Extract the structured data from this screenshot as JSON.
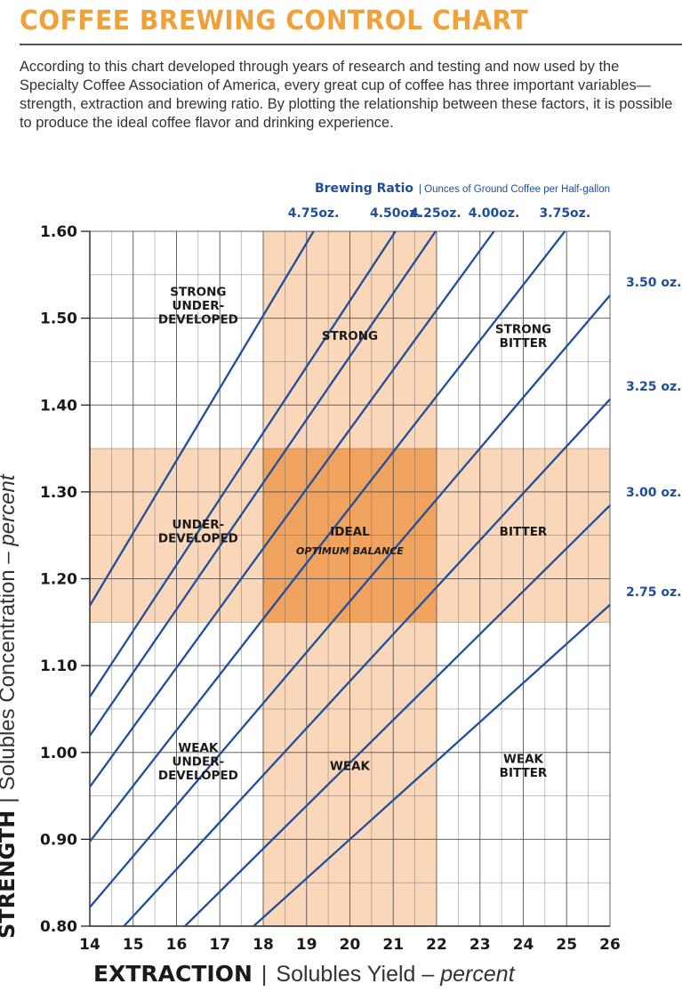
{
  "title": "COFFEE BREWING CONTROL CHART",
  "intro": "According to this chart developed through years of research and testing and now used by the Specialty Coffee Association of America, every great cup of coffee has three important variables—strength, extraction and brewing ratio. By plotting the relationship between these factors, it is possible to produce the ideal coffee flavor and drinking experience.",
  "colors": {
    "title": "#f0a13a",
    "line": "#1f4e9c",
    "zone_light": "#f9d7b8",
    "zone_dark": "#f0a35f",
    "grid": "#555555"
  },
  "chart_data": {
    "type": "line",
    "title": "Coffee Brewing Control Chart",
    "ratio_title": "Brewing Ratio",
    "ratio_subtitle": "| Ounces of Ground Coffee per Half-gallon",
    "xlabel": "EXTRACTION",
    "xlabel_rest": "Solubles Yield – ",
    "xlabel_italic": "percent",
    "ylabel": "STRENGTH",
    "ylabel_rest": "Solubles Concentration – ",
    "ylabel_italic": "percent",
    "xlim": [
      14,
      26
    ],
    "ylim": [
      0.8,
      1.6
    ],
    "x_ticks": [
      "14",
      "15",
      "16",
      "17",
      "18",
      "19",
      "20",
      "21",
      "22",
      "23",
      "24",
      "25",
      "26"
    ],
    "y_ticks": [
      "0.80",
      "0.90",
      "1.00",
      "1.10",
      "1.20",
      "1.30",
      "1.40",
      "1.50",
      "1.60"
    ],
    "ideal_extraction": [
      18,
      22
    ],
    "ideal_strength": [
      1.15,
      1.35
    ],
    "series": [
      {
        "name": "4.75oz.",
        "strength_per_extraction_percent": 0.0835
      },
      {
        "name": "4.50oz.",
        "strength_per_extraction_percent": 0.076
      },
      {
        "name": "4.25oz.",
        "strength_per_extraction_percent": 0.0728
      },
      {
        "name": "4.00oz.",
        "strength_per_extraction_percent": 0.0686
      },
      {
        "name": "3.75oz.",
        "strength_per_extraction_percent": 0.0641
      },
      {
        "name": "3.50 oz.",
        "strength_per_extraction_percent": 0.0587
      },
      {
        "name": "3.25 oz.",
        "strength_per_extraction_percent": 0.0541
      },
      {
        "name": "3.00 oz.",
        "strength_per_extraction_percent": 0.0494
      },
      {
        "name": "2.75 oz.",
        "strength_per_extraction_percent": 0.045
      }
    ],
    "zones": [
      {
        "lines": [
          "STRONG",
          "UNDER-",
          "DEVELOPED"
        ],
        "x": 16.5,
        "y": 1.515
      },
      {
        "lines": [
          "STRONG"
        ],
        "x": 20.0,
        "y": 1.48
      },
      {
        "lines": [
          "STRONG",
          "BITTER"
        ],
        "x": 24.0,
        "y": 1.48
      },
      {
        "lines": [
          "UNDER-",
          "DEVELOPED"
        ],
        "x": 16.5,
        "y": 1.255
      },
      {
        "lines": [
          "IDEAL"
        ],
        "x": 20.0,
        "y": 1.255
      },
      {
        "lines": [
          "BITTER"
        ],
        "x": 24.0,
        "y": 1.255
      },
      {
        "lines": [
          "WEAK",
          "UNDER-",
          "DEVELOPED"
        ],
        "x": 16.5,
        "y": 0.99
      },
      {
        "lines": [
          "WEAK"
        ],
        "x": 20.0,
        "y": 0.985
      },
      {
        "lines": [
          "WEAK",
          "BITTER"
        ],
        "x": 24.0,
        "y": 0.985
      }
    ],
    "ideal_subtitle": "OPTIMUM BALANCE"
  }
}
